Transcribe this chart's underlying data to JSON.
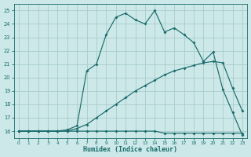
{
  "xlabel": "Humidex (Indice chaleur)",
  "bg_color": "#cce8e8",
  "grid_color": "#aacccc",
  "line_color": "#1a6b6b",
  "xlim": [
    -0.5,
    23.5
  ],
  "ylim": [
    15.5,
    25.5
  ],
  "xticks": [
    0,
    1,
    2,
    3,
    4,
    5,
    6,
    7,
    8,
    9,
    10,
    11,
    12,
    13,
    14,
    15,
    16,
    17,
    18,
    19,
    20,
    21,
    22,
    23
  ],
  "yticks": [
    16,
    17,
    18,
    19,
    20,
    21,
    22,
    23,
    24,
    25
  ],
  "line1_x": [
    0,
    1,
    2,
    3,
    4,
    5,
    6,
    7,
    8,
    9,
    10,
    11,
    12,
    13,
    14,
    15,
    16,
    17,
    18,
    19,
    20,
    21,
    22,
    23
  ],
  "line1_y": [
    16.0,
    16.0,
    16.0,
    16.0,
    16.0,
    16.1,
    16.4,
    20.5,
    21.0,
    23.2,
    24.5,
    24.8,
    24.3,
    24.0,
    25.0,
    23.4,
    23.7,
    23.2,
    22.6,
    21.2,
    21.9,
    19.1,
    17.4,
    15.7
  ],
  "line2_x": [
    0,
    1,
    2,
    3,
    4,
    5,
    6,
    7,
    8,
    9,
    10,
    11,
    12,
    13,
    14,
    15,
    16,
    17,
    18,
    19,
    20,
    21,
    22,
    23
  ],
  "line2_y": [
    16.0,
    16.0,
    16.0,
    16.0,
    16.0,
    16.0,
    16.2,
    16.5,
    17.0,
    17.5,
    18.0,
    18.5,
    19.0,
    19.4,
    19.8,
    20.2,
    20.5,
    20.7,
    20.9,
    21.1,
    21.2,
    21.1,
    19.2,
    17.5
  ],
  "line3_x": [
    0,
    1,
    2,
    3,
    4,
    5,
    6,
    7,
    8,
    9,
    10,
    11,
    12,
    13,
    14,
    15,
    16,
    17,
    18,
    19,
    20,
    21,
    22,
    23
  ],
  "line3_y": [
    16.0,
    16.0,
    16.0,
    16.0,
    16.0,
    16.0,
    16.0,
    16.0,
    16.0,
    16.0,
    16.0,
    16.0,
    16.0,
    16.0,
    16.0,
    15.85,
    15.85,
    15.85,
    15.85,
    15.85,
    15.85,
    15.85,
    15.85,
    15.85
  ]
}
